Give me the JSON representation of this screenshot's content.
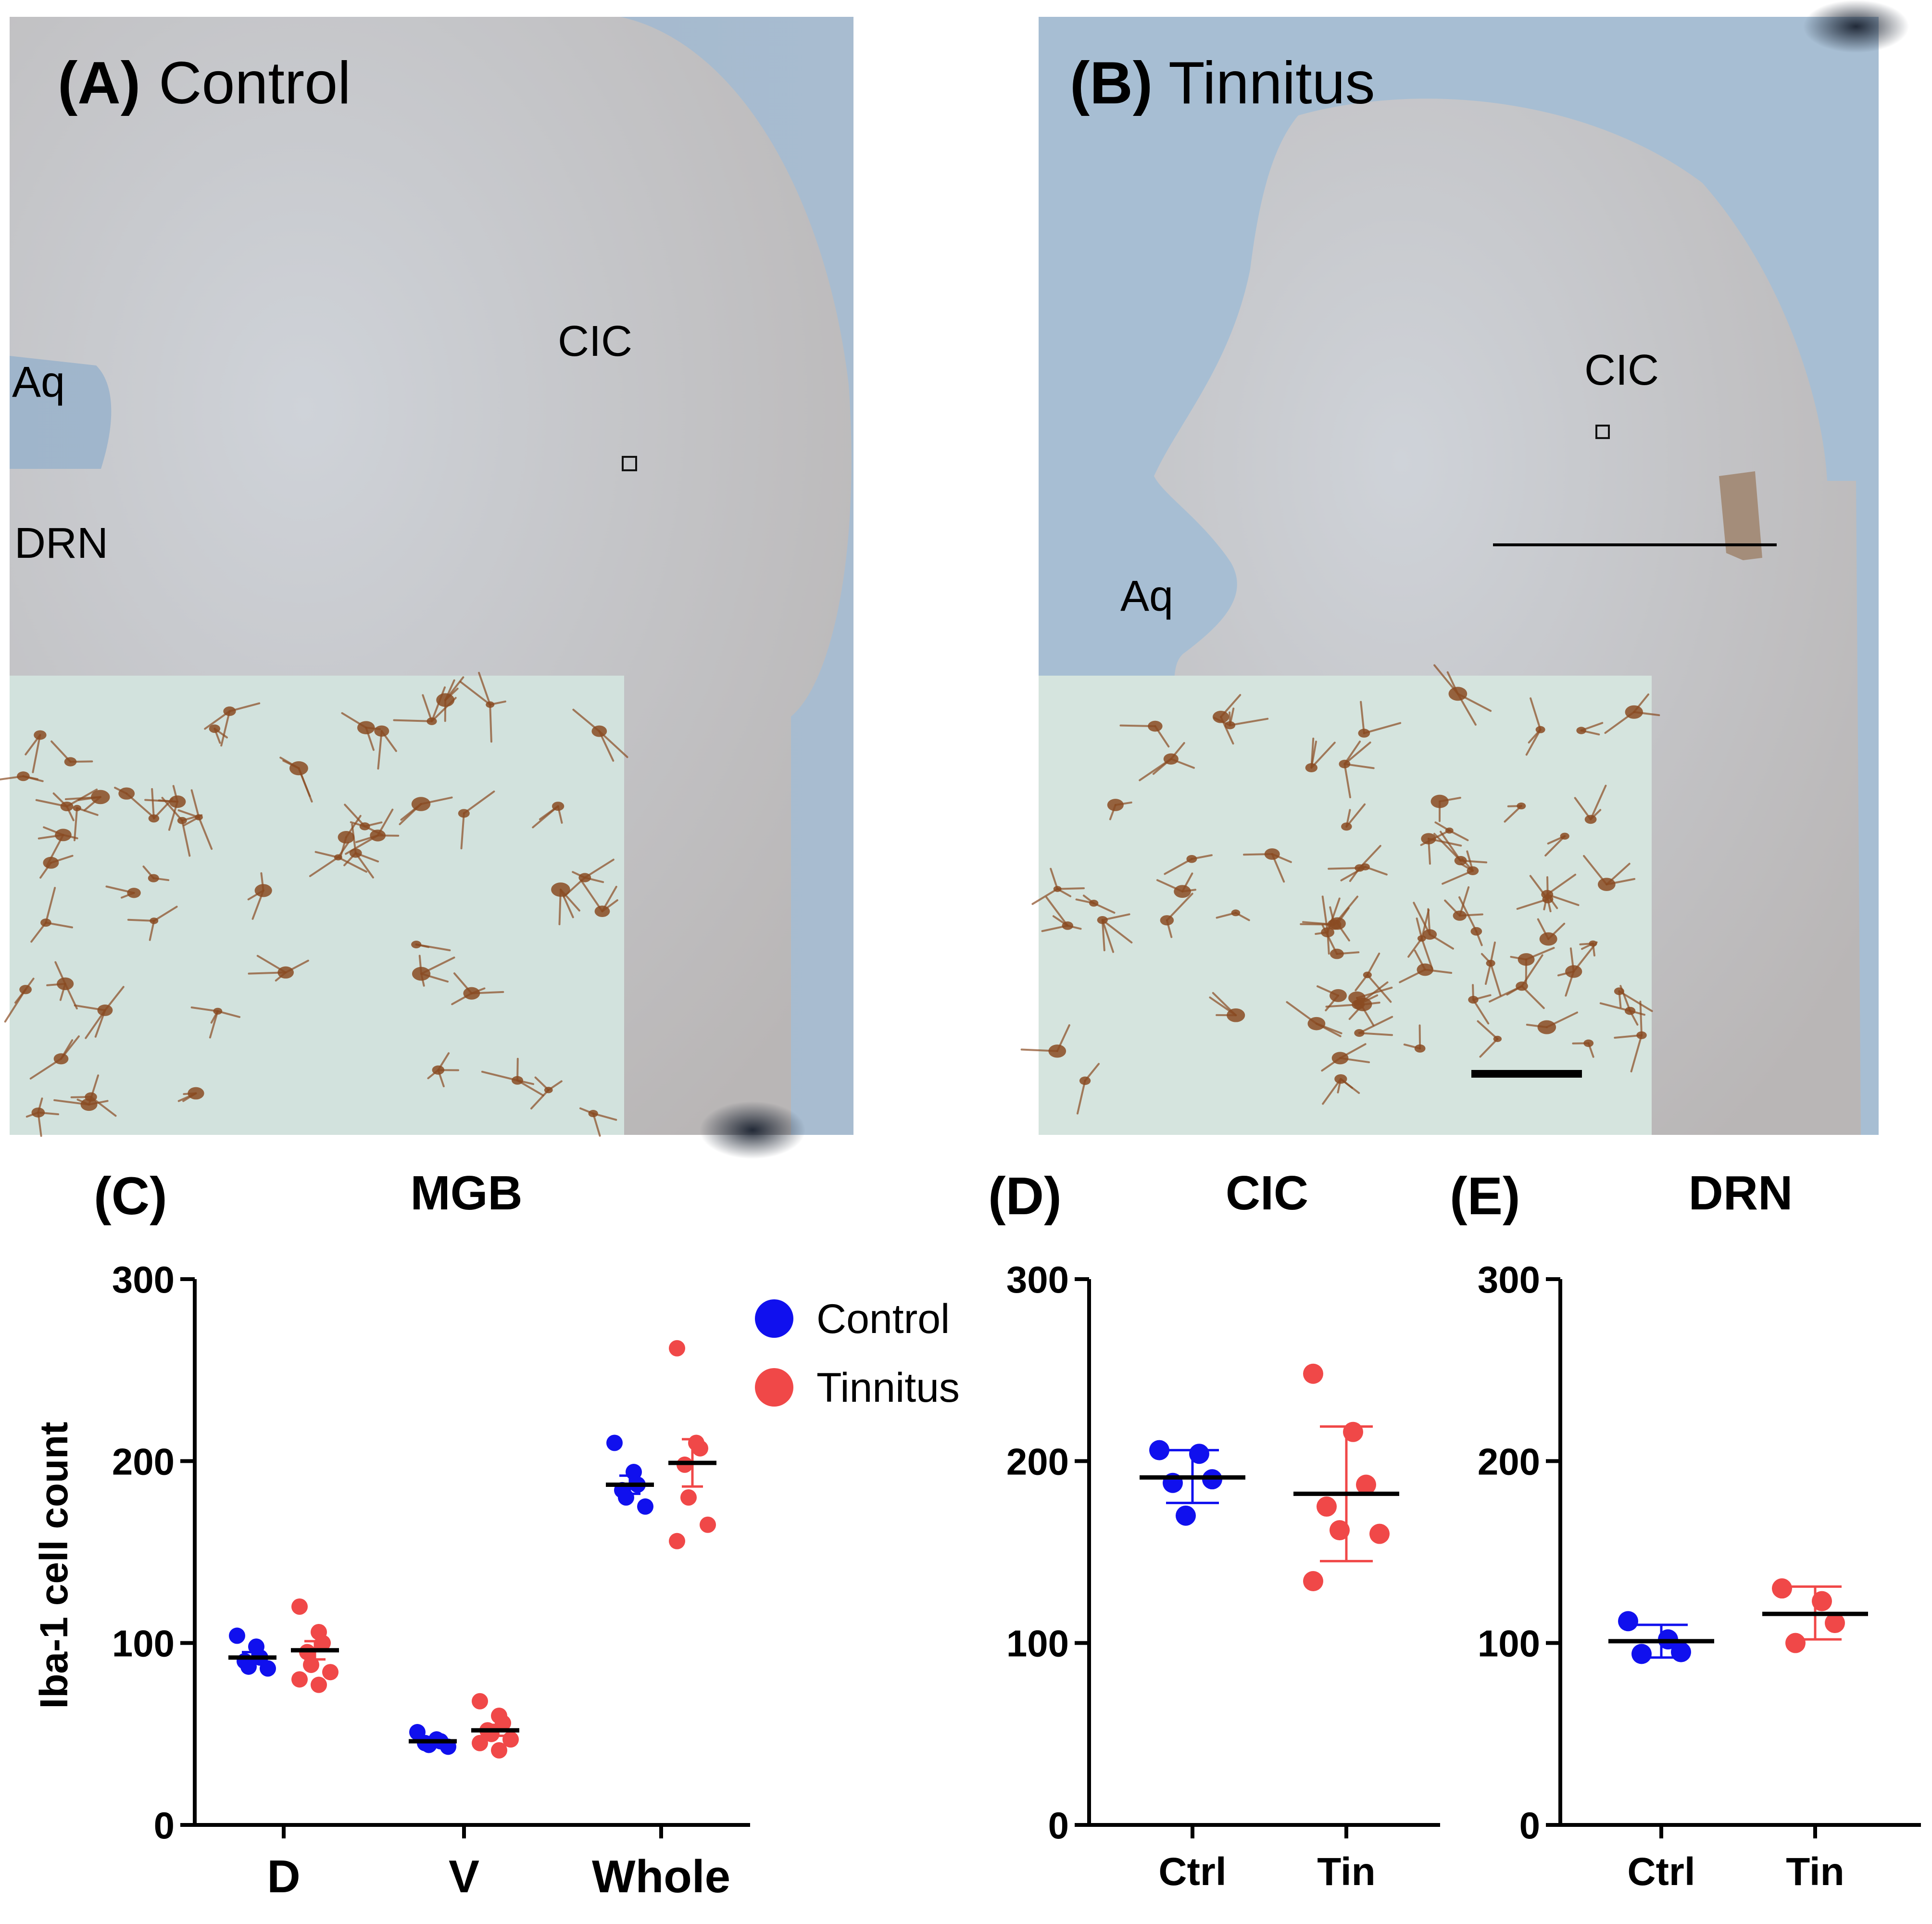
{
  "colors": {
    "control": "#1010ee",
    "tinnitus": "#f04848",
    "mean": "#000000",
    "tissue": "#c8ccd2",
    "slide_bg": "#9fb6cc",
    "inset_bg": "#d5e3df",
    "stain": "#8a4b22"
  },
  "panel_a": {
    "letter": "(A)",
    "title": "Control",
    "labels": {
      "cic": "CIC",
      "aq": "Aq",
      "drn": "DRN"
    }
  },
  "panel_b": {
    "letter": "(B)",
    "title": "Tinnitus",
    "labels": {
      "cic": "CIC",
      "aq": "Aq"
    }
  },
  "legend": {
    "control": "Control",
    "tinnitus": "Tinnitus"
  },
  "chart_data": [
    {
      "id": "C",
      "type": "scatter",
      "letter": "(C)",
      "title": "MGB",
      "ylabel": "Iba-1 cell count",
      "ylim": [
        0,
        300
      ],
      "yticks": [
        "0",
        "100",
        "200",
        "300"
      ],
      "categories": [
        "D",
        "V",
        "Whole"
      ],
      "series": [
        {
          "name": "Control",
          "points": [
            [
              104,
              98,
              92,
              90,
              87,
              86
            ],
            [
              51,
              47,
              46,
              45,
              44,
              43
            ],
            [
              210,
              194,
              187,
              184,
              180,
              175
            ]
          ],
          "mean": [
            92,
            46,
            187
          ],
          "sem": [
            3,
            1.5,
            5
          ]
        },
        {
          "name": "Tinnitus",
          "points": [
            [
              120,
              106,
              100,
              95,
              88,
              84,
              80,
              77
            ],
            [
              68,
              60,
              56,
              52,
              50,
              47,
              45,
              41
            ],
            [
              262,
              210,
              207,
              198,
              180,
              165,
              156
            ]
          ],
          "mean": [
            96,
            52,
            199
          ],
          "sem": [
            5,
            3,
            13
          ]
        }
      ]
    },
    {
      "id": "D",
      "type": "scatter",
      "letter": "(D)",
      "title": "CIC",
      "ylim": [
        0,
        300
      ],
      "yticks": [
        "0",
        "100",
        "200",
        "300"
      ],
      "categories": [
        "Ctrl",
        "Tin"
      ],
      "series": [
        {
          "name": "Control",
          "values": [
            206,
            204,
            190,
            188,
            170
          ],
          "mean": 191,
          "error": [
            177,
            206
          ]
        },
        {
          "name": "Tinnitus",
          "values": [
            248,
            216,
            187,
            175,
            162,
            160,
            134
          ],
          "mean": 182,
          "error": [
            145,
            219
          ]
        }
      ]
    },
    {
      "id": "E",
      "type": "scatter",
      "letter": "(E)",
      "title": "DRN",
      "ylim": [
        0,
        300
      ],
      "yticks": [
        "0",
        "100",
        "200",
        "300"
      ],
      "categories": [
        "Ctrl",
        "Tin"
      ],
      "series": [
        {
          "name": "Control",
          "values": [
            112,
            102,
            95,
            94
          ],
          "mean": 101,
          "error": [
            92,
            110
          ]
        },
        {
          "name": "Tinnitus",
          "values": [
            130,
            123,
            111,
            100
          ],
          "mean": 116,
          "error": [
            102,
            131
          ]
        }
      ]
    }
  ]
}
